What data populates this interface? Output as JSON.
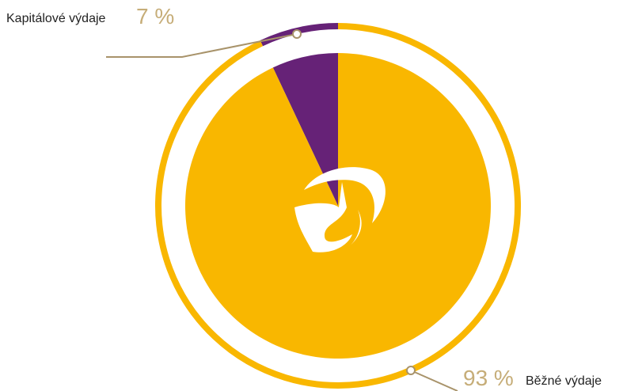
{
  "chart_data": {
    "type": "pie",
    "categories": [
      "Kapitálové výdaje",
      "Běžné výdaje"
    ],
    "values": [
      7,
      93
    ],
    "value_labels": [
      "7 %",
      "93 %"
    ],
    "colors": [
      "#662277",
      "#f9b700"
    ]
  }
}
